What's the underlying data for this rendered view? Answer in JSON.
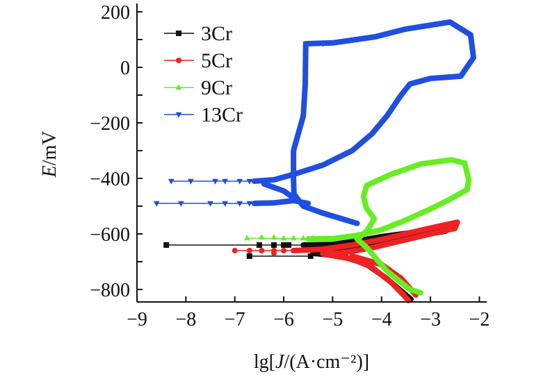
{
  "chart_data": {
    "type": "line",
    "title": "",
    "xlabel": {
      "prefix": "lg[",
      "italic": "J",
      "suffix": "/(A·cm⁻²)]"
    },
    "ylabel": {
      "italic": "E",
      "suffix": "/mV"
    },
    "xlim": [
      -9,
      -1.85
    ],
    "ylim": [
      -845,
      230
    ],
    "xticks": [
      -9,
      -8,
      -7,
      -6,
      -5,
      -4,
      -3,
      -2
    ],
    "xtick_labels": [
      "−9",
      "−8",
      "−7",
      "−6",
      "−5",
      "−4",
      "−3",
      "−2"
    ],
    "yticks": [
      200,
      0,
      -200,
      -400,
      -600,
      -800
    ],
    "ytick_labels": [
      "200",
      "0",
      "−200",
      "−400",
      "−600",
      "−800"
    ],
    "grid": false,
    "legend_placement": "top-left",
    "series": [
      {
        "name": "3Cr",
        "color": "#111111",
        "marker": "square",
        "markers": [
          [
            -8.4,
            -640
          ],
          [
            -6.5,
            -640
          ],
          [
            -6.2,
            -640
          ],
          [
            -6.0,
            -640
          ],
          [
            -5.9,
            -640
          ],
          [
            -6.7,
            -680
          ],
          [
            -5.45,
            -680
          ]
        ],
        "thin": [
          [
            [
              -8.4,
              -640
            ],
            [
              -5.6,
              -640
            ]
          ],
          [
            [
              -6.7,
              -680
            ],
            [
              -5.4,
              -680
            ]
          ]
        ],
        "curves": [
          [
            [
              -5.6,
              -640
            ],
            [
              -5,
              -638
            ],
            [
              -4.5,
              -625
            ],
            [
              -4,
              -610
            ],
            [
              -3.5,
              -598
            ],
            [
              -3,
              -588
            ],
            [
              -2.55,
              -578
            ],
            [
              -2.7,
              -590
            ],
            [
              -3.2,
              -605
            ],
            [
              -3.8,
              -625
            ],
            [
              -4.4,
              -645
            ],
            [
              -5,
              -660
            ],
            [
              -5.4,
              -670
            ]
          ],
          [
            [
              -5.4,
              -670
            ],
            [
              -4.8,
              -680
            ],
            [
              -4.3,
              -710
            ],
            [
              -3.9,
              -760
            ],
            [
              -3.6,
              -805
            ],
            [
              -3.4,
              -835
            ]
          ]
        ]
      },
      {
        "name": "5Cr",
        "color": "#ee2222",
        "marker": "circle",
        "markers": [
          [
            -7.0,
            -660
          ],
          [
            -6.7,
            -660
          ],
          [
            -6.45,
            -660
          ],
          [
            -6.2,
            -660
          ],
          [
            -6.0,
            -660
          ],
          [
            -5.8,
            -660
          ],
          [
            -6.2,
            -670
          ]
        ],
        "thin": [
          [
            [
              -7.0,
              -660
            ],
            [
              -5.8,
              -660
            ]
          ]
        ],
        "curves": [
          [
            [
              -5.8,
              -660
            ],
            [
              -5.2,
              -655
            ],
            [
              -4.6,
              -640
            ],
            [
              -4,
              -620
            ],
            [
              -3.4,
              -595
            ],
            [
              -2.9,
              -575
            ],
            [
              -2.45,
              -558
            ],
            [
              -2.5,
              -580
            ],
            [
              -3,
              -600
            ],
            [
              -3.6,
              -625
            ],
            [
              -4.2,
              -650
            ],
            [
              -4.8,
              -668
            ],
            [
              -5.2,
              -672
            ]
          ],
          [
            [
              -5.2,
              -672
            ],
            [
              -4.6,
              -690
            ],
            [
              -4.2,
              -720
            ],
            [
              -3.8,
              -775
            ],
            [
              -3.55,
              -820
            ],
            [
              -3.45,
              -840
            ]
          ],
          [
            [
              -4.6,
              -680
            ],
            [
              -4.0,
              -710
            ],
            [
              -3.6,
              -760
            ],
            [
              -3.3,
              -820
            ]
          ]
        ]
      },
      {
        "name": "9Cr",
        "color": "#66ee22",
        "marker": "triangle-up",
        "markers": [
          [
            -6.75,
            -615
          ],
          [
            -6.45,
            -612
          ],
          [
            -6.2,
            -612
          ],
          [
            -6.0,
            -615
          ],
          [
            -5.8,
            -615
          ],
          [
            -5.6,
            -615
          ],
          [
            -5.4,
            -615
          ]
        ],
        "thin": [
          [
            [
              -6.75,
              -615
            ],
            [
              -5.5,
              -618
            ]
          ]
        ],
        "curves": [
          [
            [
              -5.5,
              -618
            ],
            [
              -5,
              -617
            ],
            [
              -4.5,
              -605
            ],
            [
              -4,
              -585
            ],
            [
              -3.5,
              -550
            ],
            [
              -3,
              -510
            ],
            [
              -2.6,
              -475
            ],
            [
              -2.25,
              -440
            ],
            [
              -2.22,
              -405
            ],
            [
              -2.3,
              -345
            ],
            [
              -2.57,
              -333
            ],
            [
              -3.2,
              -348
            ],
            [
              -3.8,
              -385
            ],
            [
              -4.3,
              -425
            ],
            [
              -4.37,
              -465
            ],
            [
              -4.31,
              -507
            ],
            [
              -4.15,
              -545
            ],
            [
              -4.3,
              -590
            ],
            [
              -4.5,
              -618
            ]
          ],
          [
            [
              -4.5,
              -618
            ],
            [
              -4.3,
              -650
            ],
            [
              -3.9,
              -732
            ],
            [
              -3.6,
              -775
            ],
            [
              -3.42,
              -800
            ],
            [
              -3.2,
              -812
            ]
          ]
        ]
      },
      {
        "name": "13Cr",
        "color": "#1f4fe0",
        "marker": "triangle-down",
        "markers": [
          [
            -8.3,
            -410
          ],
          [
            -7.9,
            -410
          ],
          [
            -7.4,
            -410
          ],
          [
            -7.2,
            -410
          ],
          [
            -6.9,
            -410
          ],
          [
            -6.7,
            -410
          ],
          [
            -8.6,
            -490
          ],
          [
            -8.1,
            -490
          ],
          [
            -7.5,
            -490
          ],
          [
            -7.2,
            -490
          ],
          [
            -6.9,
            -490
          ],
          [
            -6.7,
            -490
          ],
          [
            -5.55,
            85
          ],
          [
            -5.2,
            85
          ]
        ],
        "thin": [
          [
            [
              -8.3,
              -410
            ],
            [
              -6.6,
              -410
            ]
          ],
          [
            [
              -8.6,
              -490
            ],
            [
              -6.6,
              -490
            ]
          ]
        ],
        "curves": [
          [
            [
              -6.6,
              -410
            ],
            [
              -6.2,
              -405
            ],
            [
              -5.79,
              -385
            ],
            [
              -5.2,
              -352
            ],
            [
              -4.6,
              -300
            ],
            [
              -4.2,
              -240
            ],
            [
              -3.89,
              -175
            ],
            [
              -3.6,
              -100
            ],
            [
              -3.42,
              -60
            ],
            [
              -3.0,
              -40
            ],
            [
              -2.38,
              -32
            ],
            [
              -2.12,
              35
            ],
            [
              -2.18,
              117
            ],
            [
              -2.6,
              163
            ],
            [
              -3.5,
              138
            ],
            [
              -4.13,
              110
            ],
            [
              -5.0,
              88
            ],
            [
              -5.55,
              85
            ],
            [
              -5.56,
              -60
            ],
            [
              -5.6,
              -175
            ],
            [
              -5.8,
              -300
            ],
            [
              -5.8,
              -400
            ],
            [
              -5.79,
              -457
            ],
            [
              -5.6,
              -500
            ],
            [
              -5.2,
              -525
            ],
            [
              -4.5,
              -562
            ]
          ],
          [
            [
              -6.6,
              -490
            ],
            [
              -6.2,
              -488
            ],
            [
              -5.8,
              -480
            ],
            [
              -5.5,
              -490
            ]
          ],
          [
            [
              -6.4,
              -420
            ],
            [
              -6.0,
              -445
            ],
            [
              -5.8,
              -470
            ]
          ]
        ]
      }
    ]
  }
}
